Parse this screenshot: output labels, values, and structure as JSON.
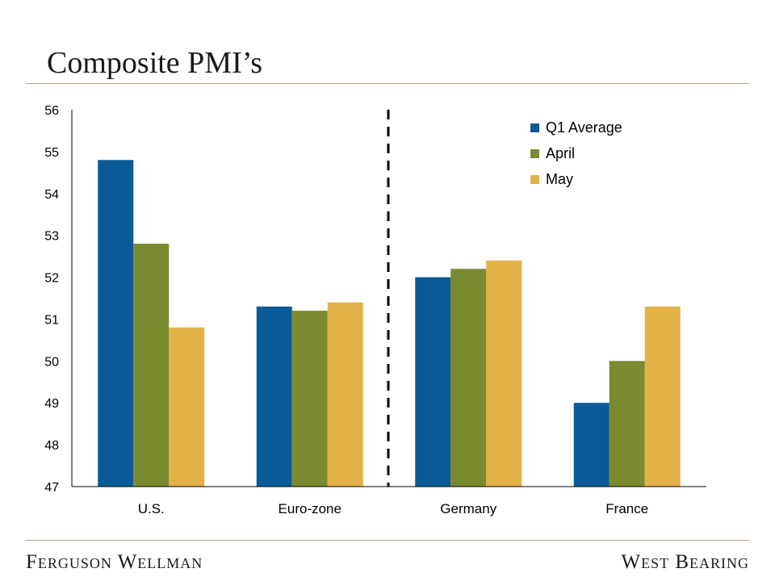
{
  "title": "Composite PMI’s",
  "footer": {
    "left": "Ferguson Wellman",
    "right": "West Bearing"
  },
  "colors": {
    "q1": "#0a5a98",
    "april": "#7a8a30",
    "may": "#e2b148",
    "rule": "#b8a488",
    "axis": "#000000"
  },
  "chart_data": {
    "type": "bar",
    "title": "Composite PMI’s",
    "xlabel": "",
    "ylabel": "",
    "ylim": [
      47,
      56
    ],
    "yticks": [
      "47",
      "48",
      "49",
      "50",
      "51",
      "52",
      "53",
      "54",
      "55",
      "56"
    ],
    "categories": [
      "U.S.",
      "Euro-zone",
      "Germany",
      "France"
    ],
    "series": [
      {
        "name": "Q1 Average",
        "values": [
          54.8,
          51.3,
          52.0,
          49.0
        ]
      },
      {
        "name": "April",
        "values": [
          52.8,
          51.2,
          52.2,
          50.0
        ]
      },
      {
        "name": "May",
        "values": [
          50.8,
          51.4,
          52.4,
          51.3
        ]
      }
    ],
    "divider": "dashed line between Euro-zone and Germany",
    "legend_position": "top-right",
    "grid": false
  }
}
